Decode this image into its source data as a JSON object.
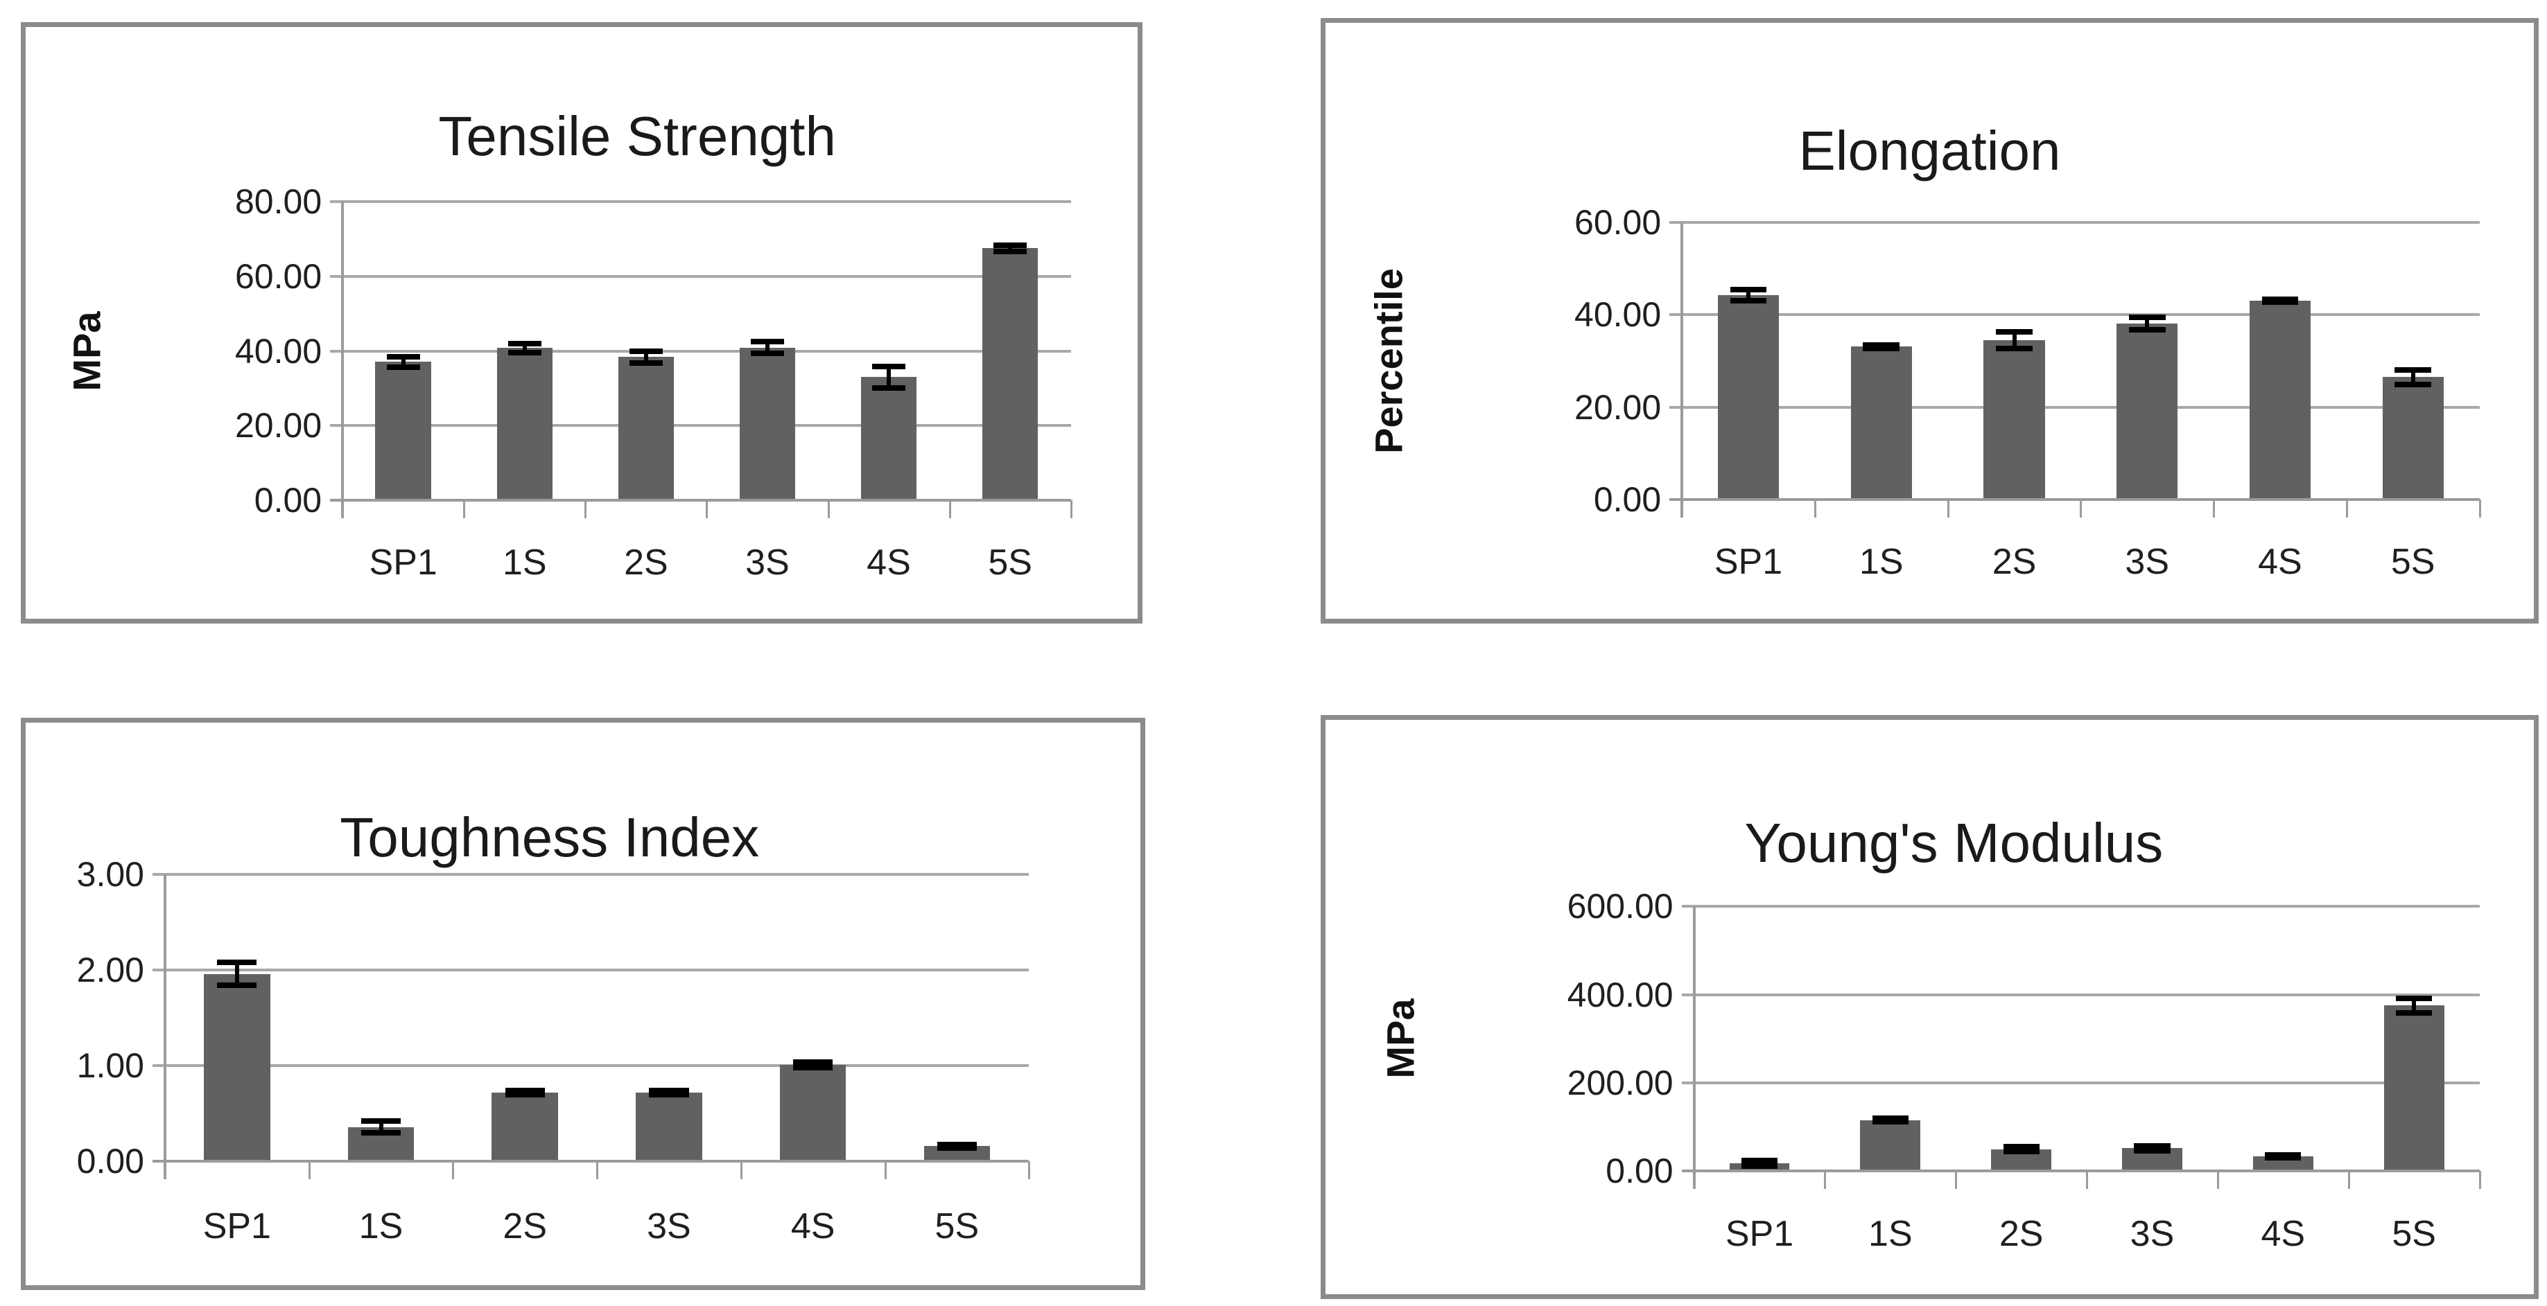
{
  "figure": {
    "description": "Four bar charts with error bars comparing samples SP1, 1S, 2S, 3S, 4S, 5S",
    "background": "#ffffff"
  },
  "colors": {
    "bar": "#616161",
    "gridline": "#a8a8a8",
    "axis": "#9b9b9b",
    "panel_border": "#8c8c8c",
    "error_bar": "#000000",
    "text": "#1f1f1f",
    "background": "#ffffff"
  },
  "chart_data": [
    {
      "type": "bar",
      "title": "Tensile Strength",
      "ylabel": "MPa",
      "xlabel": "",
      "categories": [
        "SP1",
        "1S",
        "2S",
        "3S",
        "4S",
        "5S"
      ],
      "values": [
        37.1,
        40.8,
        38.4,
        40.9,
        33.0,
        67.5
      ],
      "errors": [
        1.4,
        1.2,
        1.6,
        1.6,
        2.9,
        0.8
      ],
      "ytick_labels": [
        "0.00",
        "20.00",
        "40.00",
        "60.00",
        "80.00"
      ],
      "ytick_values": [
        0,
        20,
        40,
        60,
        80
      ],
      "ylim": [
        0,
        80
      ],
      "grid": true,
      "legend": false
    },
    {
      "type": "bar",
      "title": "Elongation",
      "ylabel": "Percentile",
      "xlabel": "",
      "categories": [
        "SP1",
        "1S",
        "2S",
        "3S",
        "4S",
        "5S"
      ],
      "values": [
        44.2,
        33.1,
        34.5,
        38.1,
        43.0,
        26.5
      ],
      "errors": [
        1.2,
        0.4,
        1.8,
        1.3,
        0.3,
        1.6
      ],
      "ytick_labels": [
        "0.00",
        "20.00",
        "40.00",
        "60.00"
      ],
      "ytick_values": [
        0,
        20,
        40,
        60
      ],
      "ylim": [
        0,
        60
      ],
      "grid": true,
      "legend": false
    },
    {
      "type": "bar",
      "title": "Toughness Index",
      "ylabel": "",
      "xlabel": "",
      "categories": [
        "SP1",
        "1S",
        "2S",
        "3S",
        "4S",
        "5S"
      ],
      "values": [
        1.96,
        0.36,
        0.72,
        0.72,
        1.01,
        0.16
      ],
      "errors": [
        0.12,
        0.06,
        0.02,
        0.02,
        0.03,
        0.02
      ],
      "ytick_labels": [
        "0.00",
        "1.00",
        "2.00",
        "3.00"
      ],
      "ytick_values": [
        0,
        1,
        2,
        3
      ],
      "ylim": [
        0,
        3
      ],
      "grid": true,
      "legend": false
    },
    {
      "type": "bar",
      "title": "Young's Modulus",
      "ylabel": "MPa",
      "xlabel": "",
      "categories": [
        "SP1",
        "1S",
        "2S",
        "3S",
        "4S",
        "5S"
      ],
      "values": [
        17,
        115,
        49,
        51,
        33,
        375
      ],
      "errors": [
        6,
        4,
        6,
        5,
        3,
        17
      ],
      "ytick_labels": [
        "0.00",
        "200.00",
        "400.00",
        "600.00"
      ],
      "ytick_values": [
        0,
        200,
        400,
        600
      ],
      "ylim": [
        0,
        600
      ],
      "grid": true,
      "legend": false
    }
  ]
}
